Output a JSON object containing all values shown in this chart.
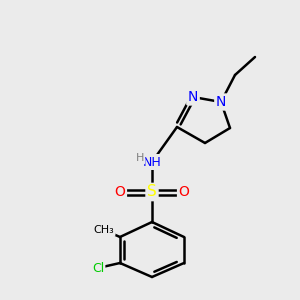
{
  "bg_color": "#ebebeb",
  "bond_color": "#000000",
  "bond_lw": 1.5,
  "atom_colors": {
    "N": "#0000ff",
    "S": "#ffff00",
    "O": "#ff0000",
    "Cl": "#00cc00",
    "H": "#808080",
    "C": "#000000"
  },
  "font_size": 9,
  "font_size_small": 8
}
